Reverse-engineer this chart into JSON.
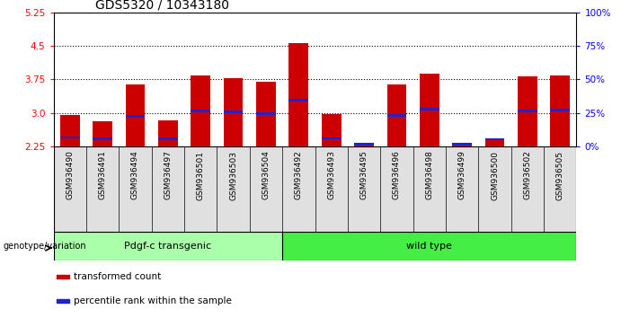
{
  "title": "GDS5320 / 10343180",
  "samples": [
    "GSM936490",
    "GSM936491",
    "GSM936494",
    "GSM936497",
    "GSM936501",
    "GSM936503",
    "GSM936504",
    "GSM936492",
    "GSM936493",
    "GSM936495",
    "GSM936496",
    "GSM936498",
    "GSM936499",
    "GSM936500",
    "GSM936502",
    "GSM936505"
  ],
  "bar_values": [
    2.95,
    2.82,
    3.63,
    2.84,
    3.85,
    3.79,
    3.69,
    4.57,
    2.97,
    2.3,
    3.64,
    3.88,
    2.3,
    2.41,
    3.82,
    3.85
  ],
  "blue_values": [
    2.45,
    2.42,
    2.93,
    2.42,
    3.05,
    3.02,
    2.98,
    3.28,
    2.43,
    2.3,
    2.94,
    3.08,
    2.3,
    2.41,
    3.05,
    3.07
  ],
  "ymin": 2.25,
  "ymax": 5.25,
  "yticks_left": [
    2.25,
    3.0,
    3.75,
    4.5,
    5.25
  ],
  "yticks_right": [
    0,
    25,
    50,
    75,
    100
  ],
  "bar_color": "#cc0000",
  "blue_color": "#2222cc",
  "groups": [
    {
      "label": "Pdgf-c transgenic",
      "start": 0,
      "end": 7,
      "color": "#aaffaa"
    },
    {
      "label": "wild type",
      "start": 7,
      "end": 16,
      "color": "#44ee44"
    }
  ],
  "genotype_label": "genotype/variation",
  "legend_items": [
    {
      "color": "#cc0000",
      "label": "transformed count"
    },
    {
      "color": "#2222cc",
      "label": "percentile rank within the sample"
    }
  ],
  "bar_width": 0.6,
  "title_fontsize": 10,
  "axis_tick_fontsize": 7.5,
  "xlabel_fontsize": 6.5
}
